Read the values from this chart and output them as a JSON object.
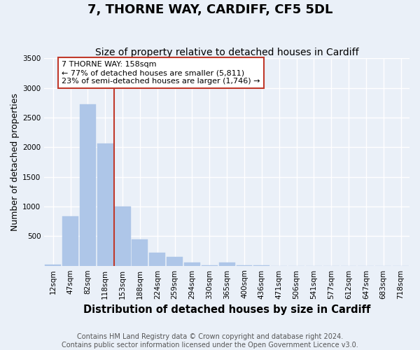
{
  "title": "7, THORNE WAY, CARDIFF, CF5 5DL",
  "subtitle": "Size of property relative to detached houses in Cardiff",
  "xlabel": "Distribution of detached houses by size in Cardiff",
  "ylabel": "Number of detached properties",
  "footer_line1": "Contains HM Land Registry data © Crown copyright and database right 2024.",
  "footer_line2": "Contains public sector information licensed under the Open Government Licence v3.0.",
  "bar_labels": [
    "12sqm",
    "47sqm",
    "82sqm",
    "118sqm",
    "153sqm",
    "188sqm",
    "224sqm",
    "259sqm",
    "294sqm",
    "330sqm",
    "365sqm",
    "400sqm",
    "436sqm",
    "471sqm",
    "506sqm",
    "541sqm",
    "577sqm",
    "612sqm",
    "647sqm",
    "683sqm",
    "718sqm"
  ],
  "bar_values": [
    25,
    840,
    2720,
    2060,
    1000,
    450,
    220,
    150,
    50,
    10,
    55,
    10,
    5,
    2,
    2,
    2,
    2,
    2,
    2,
    2,
    2
  ],
  "bar_color": "#aec6e8",
  "vline_x": 3.5,
  "vline_color": "#c0392b",
  "annotation_text": "7 THORNE WAY: 158sqm\n← 77% of detached houses are smaller (5,811)\n23% of semi-detached houses are larger (1,746) →",
  "annotation_box_edgecolor": "#c0392b",
  "annotation_box_facecolor": "#ffffff",
  "ylim": [
    0,
    3500
  ],
  "yticks": [
    0,
    500,
    1000,
    1500,
    2000,
    2500,
    3000,
    3500
  ],
  "bg_color": "#eaf0f8",
  "plot_bg_color": "#eaf0f8",
  "grid_color": "#ffffff",
  "title_fontsize": 13,
  "subtitle_fontsize": 10,
  "xlabel_fontsize": 10.5,
  "ylabel_fontsize": 9,
  "tick_fontsize": 7.5,
  "annotation_fontsize": 8,
  "footer_fontsize": 7
}
